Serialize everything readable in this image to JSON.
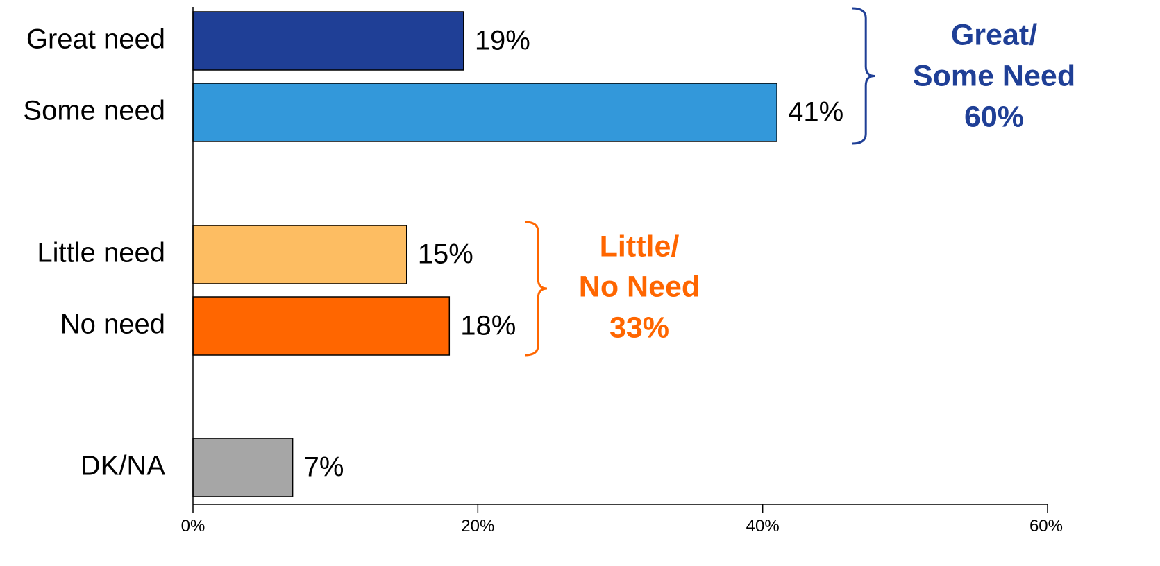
{
  "chart_data": {
    "type": "bar",
    "orientation": "horizontal",
    "categories": [
      "Great need",
      "Some need",
      "Little need",
      "No need",
      "DK/NA"
    ],
    "values": [
      19,
      41,
      15,
      18,
      7
    ],
    "value_labels": [
      "19%",
      "41%",
      "15%",
      "18%",
      "7%"
    ],
    "colors": [
      "#1F3F96",
      "#3398DA",
      "#FDBD62",
      "#FF6600",
      "#A6A6A6"
    ],
    "xlim": [
      0,
      60
    ],
    "x_ticks": [
      0,
      20,
      40,
      60
    ],
    "x_tick_labels": [
      "0%",
      "20%",
      "40%",
      "60%"
    ],
    "grid": false,
    "groups": [
      {
        "lines": [
          "Great/",
          "Some Need",
          "60%"
        ],
        "color": "#1F3F96",
        "members": [
          0,
          1
        ]
      },
      {
        "lines": [
          "Little/",
          "No Need",
          "33%"
        ],
        "color": "#FF6600",
        "members": [
          2,
          3
        ]
      }
    ]
  }
}
